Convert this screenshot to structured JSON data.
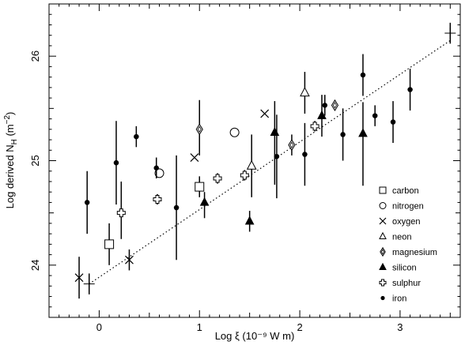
{
  "chart_data": {
    "type": "scatter",
    "title": "",
    "xlabel": "Log ξ (10⁻⁹ W m)",
    "ylabel": "Log derived N_H (m⁻²)",
    "ylabel_prefix": "Log derived N",
    "ylabel_sub": "H",
    "ylabel_unit_open": " (m",
    "ylabel_unit_exp": "−2",
    "ylabel_unit_close": ")",
    "xlim": [
      -0.5,
      3.6
    ],
    "ylim": [
      23.5,
      26.5
    ],
    "x_ticks": [
      0,
      1,
      2,
      3
    ],
    "y_ticks": [
      24,
      25,
      26
    ],
    "grid": false,
    "legend_position": "bottom-right",
    "fit_line": {
      "style": "dotted",
      "x": [
        -0.1,
        3.5
      ],
      "y": [
        23.82,
        26.15
      ]
    },
    "series": [
      {
        "name": "carbon",
        "marker": "square",
        "points": [
          {
            "x": 0.1,
            "y": 24.2,
            "yerr": [
              0.2,
              0.2
            ]
          },
          {
            "x": 1.0,
            "y": 24.75,
            "yerr": [
              0.1,
              0.1
            ]
          }
        ]
      },
      {
        "name": "nitrogen",
        "marker": "circle",
        "points": [
          {
            "x": 0.6,
            "y": 24.88
          },
          {
            "x": 1.35,
            "y": 25.27
          }
        ]
      },
      {
        "name": "oxygen",
        "marker": "cross",
        "points": [
          {
            "x": -0.2,
            "y": 23.88,
            "yerr": [
              0.2,
              0.2
            ]
          },
          {
            "x": 0.3,
            "y": 24.05,
            "yerr": [
              0.1,
              0.1
            ]
          },
          {
            "x": 0.95,
            "y": 25.03
          },
          {
            "x": 1.65,
            "y": 25.45
          }
        ]
      },
      {
        "name": "neon",
        "marker": "triangle",
        "points": [
          {
            "x": 1.52,
            "y": 24.95,
            "yerr": [
              0.3,
              0.3
            ]
          },
          {
            "x": 2.05,
            "y": 25.65,
            "yerr": [
              0.2,
              0.2
            ]
          }
        ]
      },
      {
        "name": "magnesium",
        "marker": "diamond",
        "points": [
          {
            "x": 1.0,
            "y": 25.3,
            "yerr": [
              0.25,
              0.28
            ]
          },
          {
            "x": 1.92,
            "y": 25.15,
            "yerr": [
              0.1,
              0.1
            ]
          },
          {
            "x": 2.35,
            "y": 25.53,
            "yerr": [
              0.05,
              0.05
            ]
          }
        ]
      },
      {
        "name": "silicon",
        "marker": "triangle-filled",
        "points": [
          {
            "x": 1.05,
            "y": 24.6,
            "yerr": [
              0.15,
              0.1
            ]
          },
          {
            "x": 1.5,
            "y": 24.42,
            "yerr": [
              0.1,
              0.1
            ]
          },
          {
            "x": 1.75,
            "y": 25.27,
            "yerr": [
              0.5,
              0.3
            ]
          },
          {
            "x": 2.22,
            "y": 25.43,
            "yerr": [
              0.2,
              0.2
            ]
          },
          {
            "x": 2.63,
            "y": 25.26,
            "yerr": [
              0.5,
              0.3
            ]
          }
        ]
      },
      {
        "name": "sulphur",
        "marker": "plus-square",
        "points": [
          {
            "x": 0.22,
            "y": 24.5,
            "yerr": [
              0.25,
              0.3
            ]
          },
          {
            "x": 0.58,
            "y": 24.63,
            "yerr": [
              0.05,
              0.05
            ]
          },
          {
            "x": 1.18,
            "y": 24.83,
            "yerr": [
              0.05,
              0.05
            ]
          },
          {
            "x": 1.45,
            "y": 24.86,
            "yerr": [
              0.05,
              0.05
            ]
          },
          {
            "x": 2.15,
            "y": 25.33,
            "yerr": [
              0.05,
              0.05
            ]
          }
        ]
      },
      {
        "name": "iron",
        "marker": "dot",
        "points": [
          {
            "x": -0.12,
            "y": 24.6,
            "yerr": [
              0.3,
              0.3
            ]
          },
          {
            "x": 0.17,
            "y": 24.98,
            "yerr": [
              0.4,
              0.4
            ]
          },
          {
            "x": 0.37,
            "y": 25.23,
            "yerr": [
              0.1,
              0.1
            ]
          },
          {
            "x": 0.57,
            "y": 24.93,
            "yerr": [
              0.1,
              0.1
            ]
          },
          {
            "x": 0.77,
            "y": 24.55,
            "yerr": [
              0.5,
              0.5
            ]
          },
          {
            "x": 1.77,
            "y": 25.04,
            "yerr": [
              0.4,
              0.4
            ]
          },
          {
            "x": 2.05,
            "y": 25.06,
            "yerr": [
              0.3,
              0.3
            ]
          },
          {
            "x": 2.25,
            "y": 25.53,
            "yerr": [
              0.1,
              0.1
            ]
          },
          {
            "x": 2.43,
            "y": 25.25,
            "yerr": [
              0.25,
              0.25
            ]
          },
          {
            "x": 2.63,
            "y": 25.82,
            "yerr": [
              0.2,
              0.2
            ]
          },
          {
            "x": 2.75,
            "y": 25.43,
            "yerr": [
              0.1,
              0.1
            ]
          },
          {
            "x": 2.93,
            "y": 25.37,
            "yerr": [
              0.2,
              0.2
            ]
          },
          {
            "x": 3.1,
            "y": 25.68,
            "yerr": [
              0.2,
              0.2
            ]
          }
        ]
      }
    ],
    "extra_marks": [
      {
        "x": 3.5,
        "y": 26.22,
        "marker": "plus",
        "yerr": [
          0.1,
          0.1
        ]
      },
      {
        "x": -0.1,
        "y": 23.82,
        "marker": "plus",
        "yerr": [
          0.1,
          0.1
        ]
      }
    ]
  }
}
